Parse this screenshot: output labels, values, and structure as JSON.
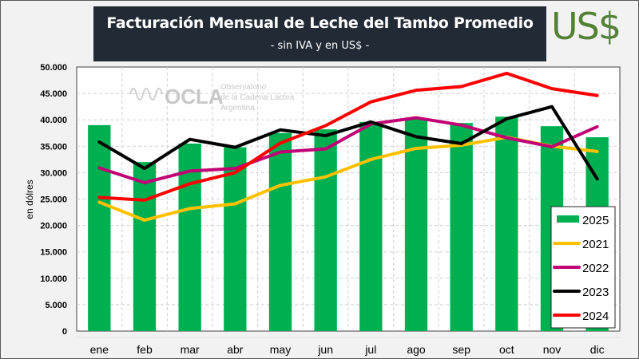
{
  "header": {
    "title": "Facturación Mensual de Leche del Tambo Promedio",
    "subtitle": "- sin IVA y en US$ -",
    "currency_label": "US$"
  },
  "watermark": {
    "logo_text": "OCLA",
    "line1": "Observatorio",
    "line2": "de la Cadena Láctea",
    "line3": "Argentina"
  },
  "colors": {
    "bar_2025": "#00b050",
    "line_2021": "#ffc000",
    "line_2022": "#c00074",
    "line_2023": "#000000",
    "line_2024": "#ff0000",
    "title_bg": "#222a35",
    "currency": "#548235"
  },
  "chart_data": {
    "type": "bar",
    "title": "Facturación Mensual de Leche del Tambo Promedio",
    "subtitle": "- sin IVA y en US$ -",
    "xlabel": "",
    "ylabel": "en dólres",
    "ylim": [
      0,
      50000
    ],
    "yticks": [
      0,
      5000,
      10000,
      15000,
      20000,
      25000,
      30000,
      35000,
      40000,
      45000,
      50000
    ],
    "ytick_labels": [
      "0",
      "5.000",
      "10.000",
      "15.000",
      "20.000",
      "25.000",
      "30.000",
      "35.000",
      "40.000",
      "45.000",
      "50.000"
    ],
    "grid": true,
    "legend_position": "bottom-right",
    "categories": [
      "ene",
      "feb",
      "mar",
      "abr",
      "may",
      "jun",
      "jul",
      "ago",
      "sep",
      "oct",
      "nov",
      "dic"
    ],
    "series": [
      {
        "name": "2025",
        "kind": "bar",
        "color": "#00b050",
        "values": [
          39000,
          32000,
          35500,
          34800,
          37500,
          38200,
          39600,
          40300,
          39400,
          40600,
          38800,
          36700
        ]
      },
      {
        "name": "2021",
        "kind": "line",
        "color": "#ffc000",
        "values": [
          24400,
          21000,
          23200,
          24100,
          27600,
          29200,
          32500,
          34600,
          35200,
          36700,
          35000,
          34000
        ]
      },
      {
        "name": "2022",
        "kind": "line",
        "color": "#c00074",
        "values": [
          30900,
          28100,
          30300,
          30800,
          33900,
          34500,
          39200,
          40400,
          39000,
          36600,
          34900,
          38700
        ]
      },
      {
        "name": "2023",
        "kind": "line",
        "color": "#000000",
        "values": [
          35800,
          30800,
          36300,
          34800,
          38100,
          37000,
          39600,
          36800,
          35500,
          40200,
          42500,
          28800
        ]
      },
      {
        "name": "2024",
        "kind": "line",
        "color": "#ff0000",
        "values": [
          25300,
          24800,
          27900,
          30000,
          35600,
          38900,
          43400,
          45600,
          46300,
          48800,
          45900,
          44600
        ]
      }
    ]
  }
}
